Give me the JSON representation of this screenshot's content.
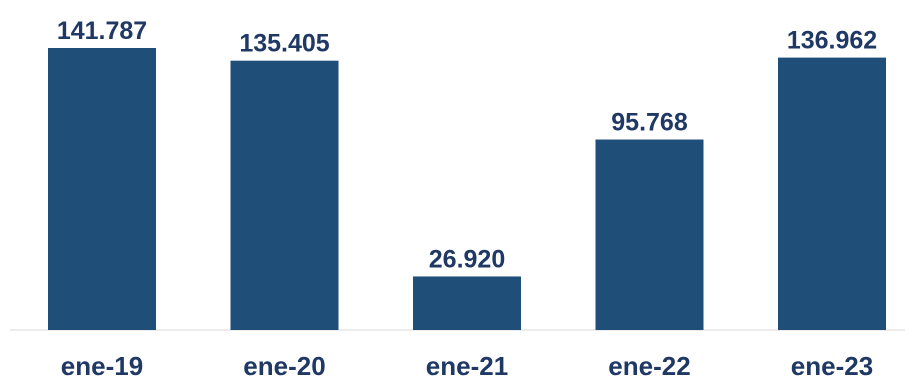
{
  "chart_data": {
    "type": "bar",
    "categories": [
      "ene-19",
      "ene-20",
      "ene-21",
      "ene-22",
      "ene-23"
    ],
    "values": [
      141787,
      135405,
      26920,
      95768,
      136962
    ],
    "value_labels": [
      "141.787",
      "135.405",
      "26.920",
      "95.768",
      "136.962"
    ],
    "title": "",
    "xlabel": "",
    "ylabel": "",
    "ylim": [
      0,
      141787
    ],
    "grid": false,
    "legend": "none",
    "bar_color": "#1f4e79",
    "label_color": "#1f3864"
  }
}
